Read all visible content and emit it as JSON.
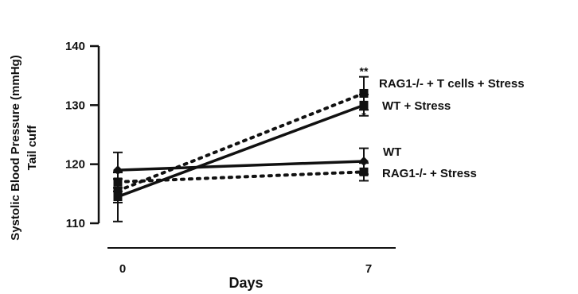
{
  "chart_data": {
    "type": "line",
    "x": [
      0,
      7
    ],
    "xlabel": "Days",
    "ylabel_line1": "Systolic Blood Pressure (mmHg)",
    "ylabel_line2": "Tail cuff",
    "ylim": [
      110,
      140
    ],
    "yticks": [
      110,
      120,
      130,
      140
    ],
    "xticks": [
      "0",
      "7"
    ],
    "series": [
      {
        "name": "RAG1-/- + T cells + Stress",
        "values": [
          115.5,
          132.0
        ],
        "err": [
          2.0,
          2.8
        ],
        "style": "dotted",
        "marker": "square",
        "annotation": "**"
      },
      {
        "name": "WT + Stress",
        "values": [
          114.5,
          130.0
        ],
        "err": [
          4.2,
          1.8
        ],
        "style": "solid",
        "marker": "square",
        "annotation": "*"
      },
      {
        "name": "WT",
        "values": [
          119.0,
          120.5
        ],
        "err": [
          3.0,
          2.2
        ],
        "style": "solid",
        "marker": "diamond",
        "annotation": ""
      },
      {
        "name": "RAG1-/- + Stress",
        "values": [
          117.0,
          118.7
        ],
        "err": [
          1.6,
          1.5
        ],
        "style": "dotted",
        "marker": "square",
        "annotation": ""
      }
    ]
  }
}
